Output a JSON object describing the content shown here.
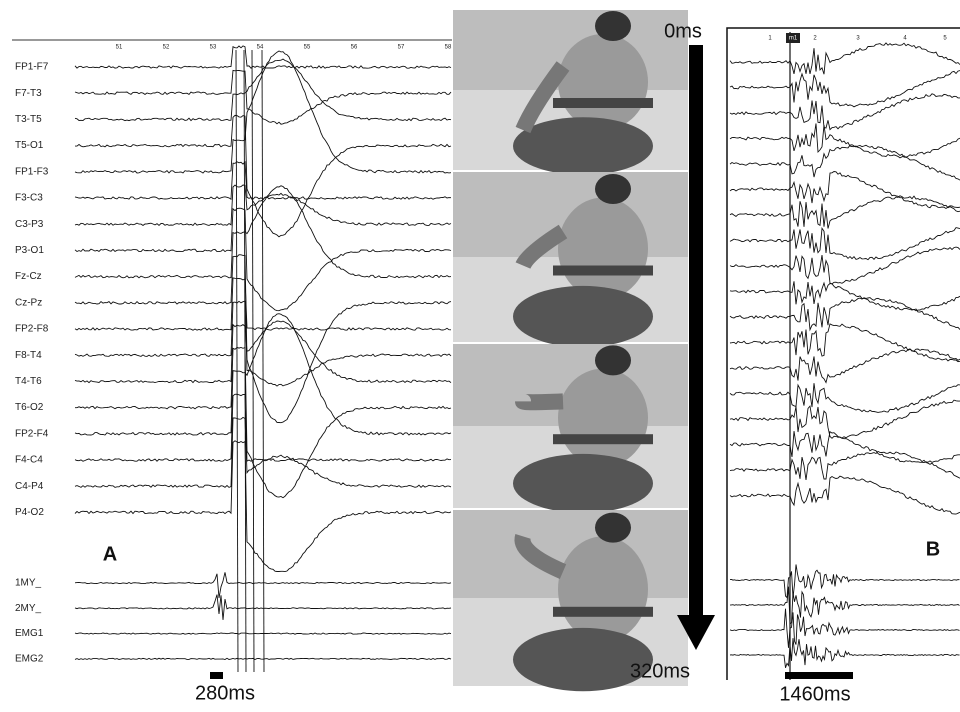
{
  "panel_a": {
    "label": "A",
    "time_ticks": [
      "51",
      "52",
      "53",
      "54",
      "55",
      "56",
      "57",
      "58"
    ],
    "channels": [
      "FP1-F7",
      "F7-T3",
      "T3-T5",
      "T5-O1",
      "FP1-F3",
      "F3-C3",
      "C3-P3",
      "P3-O1",
      "Fz-Cz",
      "Cz-Pz",
      "FP2-F8",
      "F8-T4",
      "T4-T6",
      "T6-O2",
      "FP2-F4",
      "F4-C4",
      "C4-P4",
      "P4-O2"
    ],
    "emg_channels": [
      "1MY_",
      "2MY_",
      "EMG1",
      "EMG2"
    ],
    "scale_label": "280ms"
  },
  "video": {
    "start_label": "0ms",
    "end_label": "320ms"
  },
  "panel_b": {
    "label": "B",
    "time_ticks": [
      "1",
      "m1",
      "2",
      "3",
      "4",
      "5"
    ],
    "scale_label": "1460ms"
  }
}
